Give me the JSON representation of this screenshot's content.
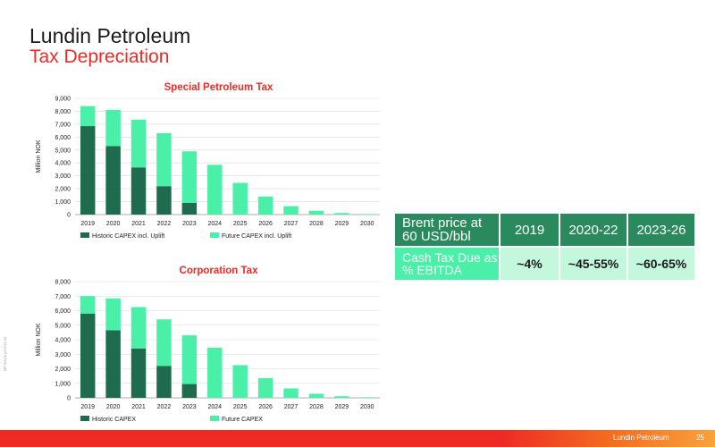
{
  "header": {
    "title": "Lundin Petroleum",
    "subtitle": "Tax Depreciation"
  },
  "colors": {
    "historic": "#1f6b4f",
    "future": "#4bf0a8",
    "accent": "#ee2a24",
    "table_header": "#2a8a5e",
    "table_label": "#4bf0a8",
    "table_value": "#c3f8dd"
  },
  "side_note": "MP 5/3/20 p/23 03 09",
  "chart_data": [
    {
      "type": "bar",
      "stacked": true,
      "title": "Special Petroleum Tax",
      "ylabel": "Million NOK",
      "xlabel": "",
      "ylim": [
        0,
        9000
      ],
      "yticks": [
        0,
        1000,
        2000,
        3000,
        4000,
        5000,
        6000,
        7000,
        8000,
        9000
      ],
      "ytick_labels": [
        "0",
        "1,000",
        "2,000",
        "3,000",
        "4,000",
        "5,000",
        "6,000",
        "7,000",
        "8,000",
        "9,000"
      ],
      "categories": [
        "2019",
        "2020",
        "2021",
        "2022",
        "2023",
        "2024",
        "2025",
        "2026",
        "2027",
        "2028",
        "2029",
        "2030"
      ],
      "series": [
        {
          "name": "Historic CAPEX incl. Uplift",
          "values": [
            6850,
            5300,
            3650,
            2200,
            900,
            0,
            0,
            0,
            0,
            0,
            0,
            0
          ]
        },
        {
          "name": "Future CAPEX incl. Uplift",
          "values": [
            1550,
            2800,
            3700,
            4100,
            4000,
            3850,
            2450,
            1400,
            650,
            300,
            120,
            40
          ]
        }
      ],
      "legend": "bottom",
      "grid": true
    },
    {
      "type": "bar",
      "stacked": true,
      "title": "Corporation Tax",
      "ylabel": "Million NOK",
      "xlabel": "",
      "ylim": [
        0,
        8000
      ],
      "yticks": [
        0,
        1000,
        2000,
        3000,
        4000,
        5000,
        6000,
        7000,
        8000
      ],
      "ytick_labels": [
        "0",
        "1,000",
        "2,000",
        "3,000",
        "4,000",
        "5,000",
        "6,000",
        "7,000",
        "8,000"
      ],
      "categories": [
        "2019",
        "2020",
        "2021",
        "2022",
        "2023",
        "2024",
        "2025",
        "2026",
        "2027",
        "2028",
        "2029",
        "2030"
      ],
      "series": [
        {
          "name": "Historic CAPEX",
          "values": [
            5800,
            4650,
            3400,
            2200,
            950,
            0,
            0,
            0,
            0,
            0,
            0,
            0
          ]
        },
        {
          "name": "Future CAPEX",
          "values": [
            1200,
            2200,
            2850,
            3200,
            3350,
            3450,
            2250,
            1350,
            650,
            280,
            110,
            40
          ]
        }
      ],
      "legend": "bottom",
      "grid": true
    }
  ],
  "tax_table": {
    "header_label": "Brent price at 60 USD/bbl",
    "years": [
      "2019",
      "2020-22",
      "2023-26"
    ],
    "row_label": "Cash Tax Due as % EBITDA",
    "values": [
      "~4%",
      "~45-55%",
      "~60-65%"
    ]
  },
  "footer": {
    "company": "Lundin Petroleum",
    "page": "25"
  }
}
